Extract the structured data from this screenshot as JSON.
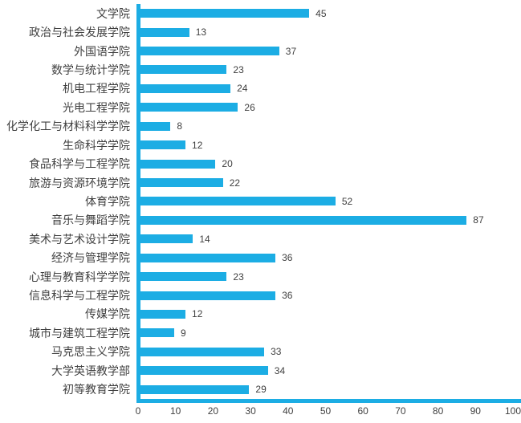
{
  "chart_data": {
    "type": "bar",
    "orientation": "horizontal",
    "categories": [
      "文学院",
      "政治与社会发展学院",
      "外国语学院",
      "数学与统计学院",
      "机电工程学院",
      "光电工程学院",
      "化学化工与材料科学学院",
      "生命科学学院",
      "食品科学与工程学院",
      "旅游与资源环境学院",
      "体育学院",
      "音乐与舞蹈学院",
      "美术与艺术设计学院",
      "经济与管理学院",
      "心理与教育科学学院",
      "信息科学与工程学院",
      "传媒学院",
      "城市与建筑工程学院",
      "马克思主义学院",
      "大学英语教学部",
      "初等教育学院"
    ],
    "values": [
      45,
      13,
      37,
      23,
      24,
      26,
      8,
      12,
      20,
      22,
      52,
      87,
      14,
      36,
      23,
      36,
      12,
      9,
      33,
      34,
      29
    ],
    "data_labels_shown": true,
    "xlim": [
      0,
      100
    ],
    "x_ticks": [
      0,
      10,
      20,
      30,
      40,
      50,
      60,
      70,
      80,
      90,
      100
    ],
    "grid": false,
    "legend": null,
    "title": "",
    "bar_color": "#1CADE4",
    "axis_line_color": "#1CADE4",
    "text_color": "#404040"
  }
}
